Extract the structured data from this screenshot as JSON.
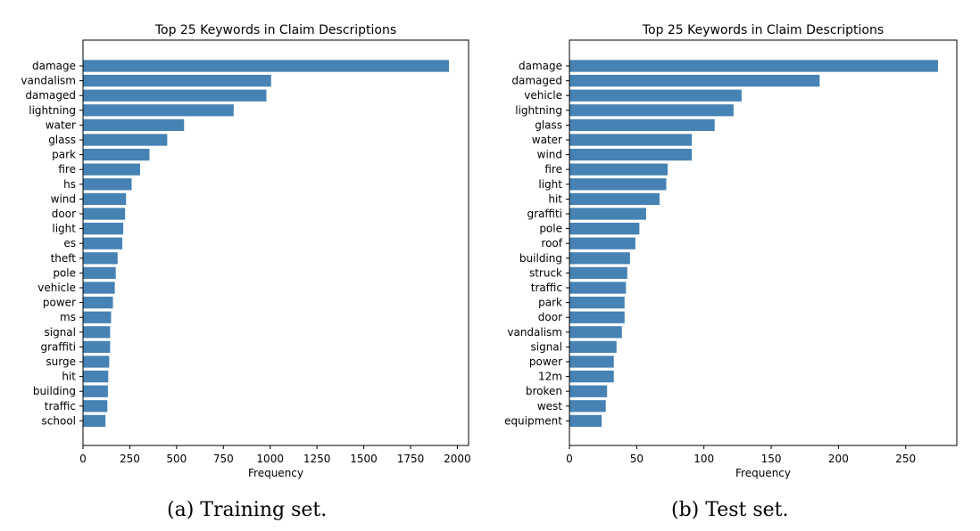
{
  "chart_data": [
    {
      "type": "bar",
      "orientation": "horizontal",
      "title": "Top 25 Keywords in Claim Descriptions",
      "xlabel": "Frequency",
      "ylabel": "",
      "xlim": [
        0,
        2060
      ],
      "xticks": [
        0,
        250,
        500,
        750,
        1000,
        1250,
        1500,
        1750,
        2000
      ],
      "color": "#4682b4",
      "caption": "(a) Training set.",
      "categories": [
        "damage",
        "vandalism",
        "damaged",
        "lightning",
        "water",
        "glass",
        "park",
        "fire",
        "hs",
        "wind",
        "door",
        "light",
        "es",
        "theft",
        "pole",
        "vehicle",
        "power",
        "ms",
        "signal",
        "graffiti",
        "surge",
        "hit",
        "building",
        "traffic",
        "school"
      ],
      "values": [
        1955,
        1005,
        980,
        805,
        540,
        450,
        355,
        305,
        260,
        230,
        225,
        215,
        210,
        185,
        175,
        170,
        160,
        150,
        145,
        145,
        140,
        135,
        133,
        130,
        120
      ]
    },
    {
      "type": "bar",
      "orientation": "horizontal",
      "title": "Top 25 Keywords in Claim Descriptions",
      "xlabel": "Frequency",
      "ylabel": "",
      "xlim": [
        0,
        288
      ],
      "xticks": [
        0,
        50,
        100,
        150,
        200,
        250
      ],
      "color": "#4682b4",
      "caption": "(b) Test set.",
      "categories": [
        "damage",
        "damaged",
        "vehicle",
        "lightning",
        "glass",
        "water",
        "wind",
        "fire",
        "light",
        "hit",
        "graffiti",
        "pole",
        "roof",
        "building",
        "struck",
        "traffic",
        "park",
        "door",
        "vandalism",
        "signal",
        "power",
        "12m",
        "broken",
        "west",
        "equipment"
      ],
      "values": [
        274,
        186,
        128,
        122,
        108,
        91,
        91,
        73,
        72,
        67,
        57,
        52,
        49,
        45,
        43,
        42,
        41,
        41,
        39,
        35,
        33,
        33,
        28,
        27,
        24
      ]
    }
  ]
}
